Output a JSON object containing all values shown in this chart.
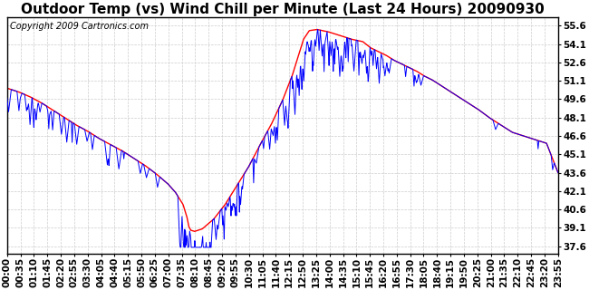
{
  "title": "Outdoor Temp (vs) Wind Chill per Minute (Last 24 Hours) 20090930",
  "copyright_text": "Copyright 2009 Cartronics.com",
  "yticks": [
    37.6,
    39.1,
    40.6,
    42.1,
    43.6,
    45.1,
    46.6,
    48.1,
    49.6,
    51.1,
    52.6,
    54.1,
    55.6
  ],
  "ylim": [
    37.0,
    56.3
  ],
  "xtick_labels": [
    "00:00",
    "00:35",
    "01:10",
    "01:45",
    "02:20",
    "02:55",
    "03:30",
    "04:05",
    "04:40",
    "05:15",
    "05:50",
    "06:25",
    "07:00",
    "07:35",
    "08:10",
    "08:45",
    "09:20",
    "09:55",
    "10:30",
    "11:05",
    "11:40",
    "12:15",
    "12:50",
    "13:25",
    "14:00",
    "14:35",
    "15:10",
    "15:45",
    "16:20",
    "16:55",
    "17:30",
    "18:05",
    "18:40",
    "19:15",
    "19:50",
    "20:25",
    "21:00",
    "21:35",
    "22:10",
    "22:45",
    "23:20",
    "23:55"
  ],
  "outdoor_color": "#ff0000",
  "windchill_color": "#0000ff",
  "background_color": "#ffffff",
  "grid_color": "#cccccc",
  "title_fontsize": 11,
  "tick_fontsize": 7.5,
  "copyright_fontsize": 7
}
